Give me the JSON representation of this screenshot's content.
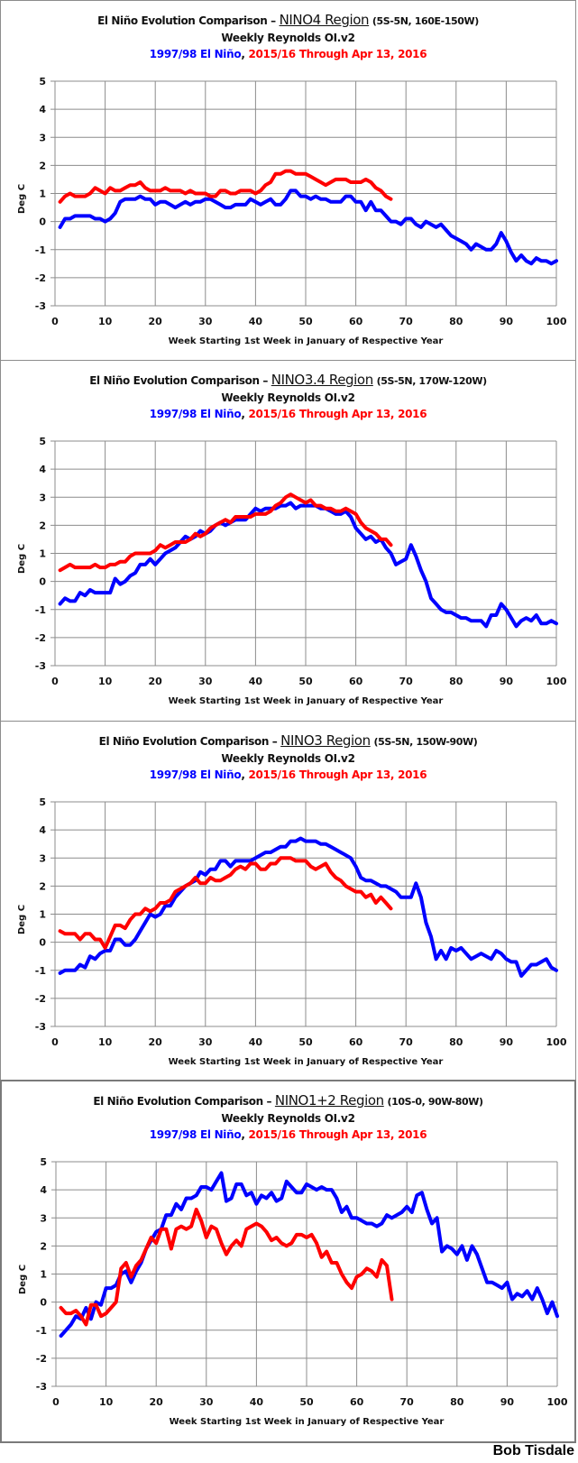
{
  "footer": {
    "author": "Bob Tisdale"
  },
  "colors": {
    "blue_series": "#0000ff",
    "red_series": "#ff0000",
    "grid": "#8c8c8c"
  },
  "chart_data": [
    {
      "type": "line",
      "title_prefix": "El Niño Evolution Comparison – ",
      "region": "NINO4 Region",
      "coords": "(5S-5N, 160E-150W)",
      "subtitle": "Weekly Reynolds OI.v2",
      "legend_blue": "1997/98 El Niño",
      "legend_sep": ", ",
      "legend_red": "2015/16 Through Apr 13, 2016",
      "xlabel": "Week Starting 1st Week in January of Respective Year",
      "ylabel": "Deg C",
      "xlim": [
        0,
        100
      ],
      "ylim": [
        -3,
        5
      ],
      "xticks": [
        0,
        10,
        20,
        30,
        40,
        50,
        60,
        70,
        80,
        90,
        100
      ],
      "yticks": [
        5,
        4,
        3,
        2,
        1,
        0,
        -1,
        -2,
        -3
      ],
      "grid": true,
      "series": [
        {
          "name": "1997/98 El Niño",
          "color": "#0000ff",
          "x_start": 1,
          "values": [
            -0.2,
            0.1,
            0.1,
            0.2,
            0.2,
            0.2,
            0.2,
            0.1,
            0.1,
            0.0,
            0.1,
            0.3,
            0.7,
            0.8,
            0.8,
            0.8,
            0.9,
            0.8,
            0.8,
            0.6,
            0.7,
            0.7,
            0.6,
            0.5,
            0.6,
            0.7,
            0.6,
            0.7,
            0.7,
            0.8,
            0.8,
            0.7,
            0.6,
            0.5,
            0.5,
            0.6,
            0.6,
            0.6,
            0.8,
            0.7,
            0.6,
            0.7,
            0.8,
            0.6,
            0.6,
            0.8,
            1.1,
            1.1,
            0.9,
            0.9,
            0.8,
            0.9,
            0.8,
            0.8,
            0.7,
            0.7,
            0.7,
            0.9,
            0.9,
            0.7,
            0.7,
            0.4,
            0.7,
            0.4,
            0.4,
            0.2,
            0.0,
            0.0,
            -0.1,
            0.1,
            0.1,
            -0.1,
            -0.2,
            0.0,
            -0.1,
            -0.2,
            -0.1,
            -0.3,
            -0.5,
            -0.6,
            -0.7,
            -0.8,
            -1.0,
            -0.8,
            -0.9,
            -1.0,
            -1.0,
            -0.8,
            -0.4,
            -0.7,
            -1.1,
            -1.4,
            -1.2,
            -1.4,
            -1.5,
            -1.3,
            -1.4,
            -1.4,
            -1.5,
            -1.4
          ]
        },
        {
          "name": "2015/16 Through Apr 13, 2016",
          "color": "#ff0000",
          "x_start": 1,
          "values": [
            0.7,
            0.9,
            1.0,
            0.9,
            0.9,
            0.9,
            1.0,
            1.2,
            1.1,
            1.0,
            1.2,
            1.1,
            1.1,
            1.2,
            1.3,
            1.3,
            1.4,
            1.2,
            1.1,
            1.1,
            1.1,
            1.2,
            1.1,
            1.1,
            1.1,
            1.0,
            1.1,
            1.0,
            1.0,
            1.0,
            0.9,
            0.9,
            1.1,
            1.1,
            1.0,
            1.0,
            1.1,
            1.1,
            1.1,
            1.0,
            1.1,
            1.3,
            1.4,
            1.7,
            1.7,
            1.8,
            1.8,
            1.7,
            1.7,
            1.7,
            1.6,
            1.5,
            1.4,
            1.3,
            1.4,
            1.5,
            1.5,
            1.5,
            1.4,
            1.4,
            1.4,
            1.5,
            1.4,
            1.2,
            1.1,
            0.9,
            0.8
          ]
        }
      ]
    },
    {
      "type": "line",
      "title_prefix": "El Niño Evolution Comparison – ",
      "region": "NINO3.4 Region",
      "coords": "(5S-5N, 170W-120W)",
      "subtitle": "Weekly Reynolds OI.v2",
      "legend_blue": "1997/98 El Niño",
      "legend_sep": ", ",
      "legend_red": "2015/16 Through Apr 13, 2016",
      "xlabel": "Week Starting 1st Week in January of Respective Year",
      "ylabel": "Deg C",
      "xlim": [
        0,
        100
      ],
      "ylim": [
        -3,
        5
      ],
      "xticks": [
        0,
        10,
        20,
        30,
        40,
        50,
        60,
        70,
        80,
        90,
        100
      ],
      "yticks": [
        5,
        4,
        3,
        2,
        1,
        0,
        -1,
        -2,
        -3
      ],
      "grid": true,
      "series": [
        {
          "name": "1997/98 El Niño",
          "color": "#0000ff",
          "x_start": 1,
          "values": [
            -0.8,
            -0.6,
            -0.7,
            -0.7,
            -0.4,
            -0.5,
            -0.3,
            -0.4,
            -0.4,
            -0.4,
            -0.4,
            0.1,
            -0.1,
            0.0,
            0.2,
            0.3,
            0.6,
            0.6,
            0.8,
            0.6,
            0.8,
            1.0,
            1.1,
            1.2,
            1.4,
            1.6,
            1.5,
            1.6,
            1.8,
            1.7,
            1.8,
            2.0,
            2.1,
            2.0,
            2.1,
            2.2,
            2.2,
            2.2,
            2.4,
            2.6,
            2.5,
            2.6,
            2.6,
            2.6,
            2.7,
            2.7,
            2.8,
            2.6,
            2.7,
            2.7,
            2.7,
            2.7,
            2.6,
            2.6,
            2.5,
            2.4,
            2.4,
            2.5,
            2.3,
            1.9,
            1.7,
            1.5,
            1.6,
            1.4,
            1.5,
            1.2,
            1.0,
            0.6,
            0.7,
            0.8,
            1.3,
            0.9,
            0.4,
            0.0,
            -0.6,
            -0.8,
            -1.0,
            -1.1,
            -1.1,
            -1.2,
            -1.3,
            -1.3,
            -1.4,
            -1.4,
            -1.4,
            -1.6,
            -1.2,
            -1.2,
            -0.8,
            -1.0,
            -1.3,
            -1.6,
            -1.4,
            -1.3,
            -1.4,
            -1.2,
            -1.5,
            -1.5,
            -1.4,
            -1.5
          ]
        },
        {
          "name": "2015/16 Through Apr 13, 2016",
          "color": "#ff0000",
          "x_start": 1,
          "values": [
            0.4,
            0.5,
            0.6,
            0.5,
            0.5,
            0.5,
            0.5,
            0.6,
            0.5,
            0.5,
            0.6,
            0.6,
            0.7,
            0.7,
            0.9,
            1.0,
            1.0,
            1.0,
            1.0,
            1.1,
            1.3,
            1.2,
            1.3,
            1.4,
            1.4,
            1.4,
            1.5,
            1.7,
            1.6,
            1.7,
            1.9,
            2.0,
            2.1,
            2.2,
            2.1,
            2.3,
            2.3,
            2.3,
            2.3,
            2.4,
            2.4,
            2.4,
            2.5,
            2.7,
            2.8,
            3.0,
            3.1,
            3.0,
            2.9,
            2.8,
            2.9,
            2.7,
            2.7,
            2.6,
            2.6,
            2.5,
            2.5,
            2.6,
            2.5,
            2.4,
            2.1,
            1.9,
            1.8,
            1.7,
            1.5,
            1.5,
            1.3
          ]
        }
      ]
    },
    {
      "type": "line",
      "title_prefix": "El Niño Evolution Comparison – ",
      "region": "NINO3 Region",
      "coords": "(5S-5N, 150W-90W)",
      "subtitle": "Weekly Reynolds OI.v2",
      "legend_blue": "1997/98 El Niño",
      "legend_sep": ", ",
      "legend_red": "2015/16 Through Apr 13, 2016",
      "xlabel": "Week Starting 1st Week in January of Respective Year",
      "ylabel": "Deg C",
      "xlim": [
        0,
        100
      ],
      "ylim": [
        -3,
        5
      ],
      "xticks": [
        0,
        10,
        20,
        30,
        40,
        50,
        60,
        70,
        80,
        90,
        100
      ],
      "yticks": [
        5,
        4,
        3,
        2,
        1,
        0,
        -1,
        -2,
        -3
      ],
      "grid": true,
      "series": [
        {
          "name": "1997/98 El Niño",
          "color": "#0000ff",
          "x_start": 1,
          "values": [
            -1.1,
            -1.0,
            -1.0,
            -1.0,
            -0.8,
            -0.9,
            -0.5,
            -0.6,
            -0.4,
            -0.3,
            -0.3,
            0.1,
            0.1,
            -0.1,
            -0.1,
            0.1,
            0.4,
            0.7,
            1.0,
            0.9,
            1.0,
            1.3,
            1.3,
            1.6,
            1.8,
            2.0,
            2.1,
            2.2,
            2.5,
            2.4,
            2.6,
            2.6,
            2.9,
            2.9,
            2.7,
            2.9,
            2.9,
            2.9,
            2.9,
            3.0,
            3.1,
            3.2,
            3.2,
            3.3,
            3.4,
            3.4,
            3.6,
            3.6,
            3.7,
            3.6,
            3.6,
            3.6,
            3.5,
            3.5,
            3.4,
            3.3,
            3.2,
            3.1,
            3.0,
            2.7,
            2.3,
            2.2,
            2.2,
            2.1,
            2.0,
            2.0,
            1.9,
            1.8,
            1.6,
            1.6,
            1.6,
            2.1,
            1.6,
            0.7,
            0.2,
            -0.6,
            -0.3,
            -0.6,
            -0.2,
            -0.3,
            -0.2,
            -0.4,
            -0.6,
            -0.5,
            -0.4,
            -0.5,
            -0.6,
            -0.3,
            -0.4,
            -0.6,
            -0.7,
            -0.7,
            -1.2,
            -1.0,
            -0.8,
            -0.8,
            -0.7,
            -0.6,
            -0.9,
            -1.0
          ]
        },
        {
          "name": "2015/16 Through Apr 13, 2016",
          "color": "#ff0000",
          "x_start": 1,
          "values": [
            0.4,
            0.3,
            0.3,
            0.3,
            0.1,
            0.3,
            0.3,
            0.1,
            0.1,
            -0.2,
            0.2,
            0.6,
            0.6,
            0.5,
            0.8,
            1.0,
            1.0,
            1.2,
            1.1,
            1.2,
            1.4,
            1.4,
            1.5,
            1.8,
            1.9,
            2.0,
            2.1,
            2.3,
            2.1,
            2.1,
            2.3,
            2.2,
            2.2,
            2.3,
            2.4,
            2.6,
            2.7,
            2.6,
            2.8,
            2.8,
            2.6,
            2.6,
            2.8,
            2.8,
            3.0,
            3.0,
            3.0,
            2.9,
            2.9,
            2.9,
            2.7,
            2.6,
            2.7,
            2.8,
            2.5,
            2.3,
            2.2,
            2.0,
            1.9,
            1.8,
            1.8,
            1.6,
            1.7,
            1.4,
            1.6,
            1.4,
            1.2
          ]
        }
      ]
    },
    {
      "type": "line",
      "title_prefix": "El Niño Evolution Comparison – ",
      "region": "NINO1+2 Region",
      "coords": "(10S-0, 90W-80W)",
      "subtitle": "Weekly Reynolds OI.v2",
      "legend_blue": "1997/98 El Niño",
      "legend_sep": ", ",
      "legend_red": "2015/16 Through Apr 13, 2016",
      "xlabel": "Week Starting 1st Week in January of Respective Year",
      "ylabel": "Deg C",
      "xlim": [
        0,
        100
      ],
      "ylim": [
        -3,
        5
      ],
      "xticks": [
        0,
        10,
        20,
        30,
        40,
        50,
        60,
        70,
        80,
        90,
        100
      ],
      "yticks": [
        5,
        4,
        3,
        2,
        1,
        0,
        -1,
        -2,
        -3
      ],
      "grid": true,
      "series": [
        {
          "name": "1997/98 El Niño",
          "color": "#0000ff",
          "x_start": 1,
          "values": [
            -1.2,
            -1.0,
            -0.8,
            -0.5,
            -0.6,
            -0.2,
            -0.6,
            0.0,
            -0.1,
            0.5,
            0.5,
            0.6,
            1.0,
            1.1,
            0.7,
            1.1,
            1.4,
            1.9,
            2.2,
            2.5,
            2.6,
            3.1,
            3.1,
            3.5,
            3.3,
            3.7,
            3.7,
            3.8,
            4.1,
            4.1,
            4.0,
            4.3,
            4.6,
            3.6,
            3.7,
            4.2,
            4.2,
            3.8,
            3.9,
            3.5,
            3.8,
            3.7,
            3.9,
            3.6,
            3.7,
            4.3,
            4.1,
            3.9,
            3.9,
            4.2,
            4.1,
            4.0,
            4.1,
            4.0,
            4.0,
            3.7,
            3.2,
            3.4,
            3.0,
            3.0,
            2.9,
            2.8,
            2.8,
            2.7,
            2.8,
            3.1,
            3.0,
            3.1,
            3.2,
            3.4,
            3.2,
            3.8,
            3.9,
            3.3,
            2.8,
            3.0,
            1.8,
            2.0,
            1.9,
            1.7,
            2.0,
            1.5,
            2.0,
            1.7,
            1.2,
            0.7,
            0.7,
            0.6,
            0.5,
            0.7,
            0.1,
            0.3,
            0.2,
            0.4,
            0.1,
            0.5,
            0.1,
            -0.4,
            0.0,
            -0.5
          ]
        },
        {
          "name": "2015/16 Through Apr 13, 2016",
          "color": "#ff0000",
          "x_start": 1,
          "values": [
            -0.2,
            -0.4,
            -0.4,
            -0.3,
            -0.5,
            -0.8,
            -0.1,
            -0.1,
            -0.5,
            -0.4,
            -0.2,
            0.0,
            1.2,
            1.4,
            0.9,
            1.3,
            1.5,
            1.9,
            2.3,
            2.1,
            2.6,
            2.6,
            1.9,
            2.6,
            2.7,
            2.6,
            2.7,
            3.3,
            2.9,
            2.3,
            2.7,
            2.6,
            2.1,
            1.7,
            2.0,
            2.2,
            2.0,
            2.6,
            2.7,
            2.8,
            2.7,
            2.5,
            2.2,
            2.3,
            2.1,
            2.0,
            2.1,
            2.4,
            2.4,
            2.3,
            2.4,
            2.1,
            1.6,
            1.8,
            1.4,
            1.4,
            1.0,
            0.7,
            0.5,
            0.9,
            1.0,
            1.2,
            1.1,
            0.9,
            1.5,
            1.3,
            0.1
          ]
        }
      ]
    }
  ]
}
